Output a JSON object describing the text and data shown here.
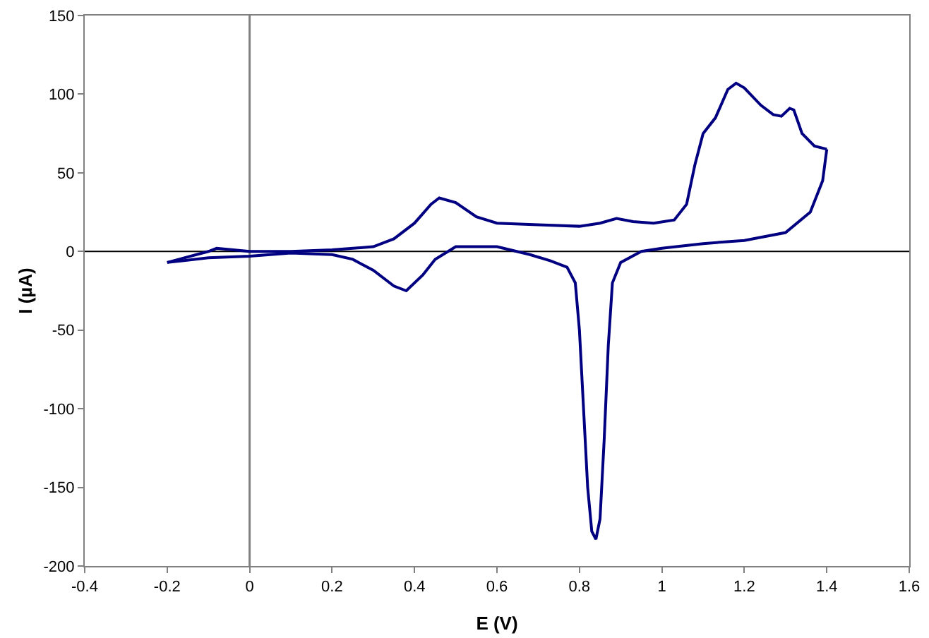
{
  "chart_data": {
    "type": "line",
    "xlabel": "E (V)",
    "ylabel": "I (µA)",
    "xlim": [
      -0.4,
      1.6
    ],
    "xticks": [
      -0.4,
      -0.2,
      0,
      0.2,
      0.4,
      0.6,
      0.8,
      1,
      1.2,
      1.4,
      1.6
    ],
    "ylim": [
      -200,
      150
    ],
    "yticks": [
      -200,
      -150,
      -100,
      -50,
      0,
      50,
      100,
      150
    ],
    "grid": false,
    "marker": "none",
    "line_style": "solid",
    "ref_lines": [
      {
        "axis": "x",
        "value": 0,
        "color": "#808080"
      },
      {
        "axis": "y",
        "value": 0,
        "color": "#000000"
      }
    ],
    "series": [
      {
        "color": "#000080",
        "x": [
          -0.2,
          -0.1,
          -0.08,
          -0.04,
          0,
          0.1,
          0.2,
          0.3,
          0.35,
          0.4,
          0.44,
          0.46,
          0.5,
          0.55,
          0.6,
          0.7,
          0.8,
          0.85,
          0.89,
          0.93,
          0.98,
          1.03,
          1.06,
          1.08,
          1.1,
          1.13,
          1.16,
          1.18,
          1.2,
          1.24,
          1.27,
          1.29,
          1.31,
          1.32,
          1.34,
          1.37,
          1.4
        ],
        "values": [
          -7,
          0,
          2,
          1,
          0,
          0,
          1,
          3,
          8,
          18,
          30,
          34,
          31,
          22,
          18,
          17,
          16,
          18,
          21,
          19,
          18,
          20,
          30,
          55,
          75,
          85,
          103,
          107,
          104,
          93,
          87,
          86,
          91,
          90,
          75,
          67,
          65
        ]
      },
      {
        "color": "#000080",
        "x": [
          -0.2,
          -0.1,
          0,
          0.1,
          0.2,
          0.25,
          0.3,
          0.35,
          0.38,
          0.42,
          0.45,
          0.5,
          0.6,
          0.68,
          0.73,
          0.77,
          0.79,
          0.8,
          0.81,
          0.82,
          0.83,
          0.84,
          0.85,
          0.86,
          0.87,
          0.88,
          0.9,
          0.95,
          1.0,
          1.1,
          1.2,
          1.3,
          1.36,
          1.39,
          1.4
        ],
        "values": [
          -7,
          -4,
          -3,
          -1,
          -2,
          -5,
          -12,
          -22,
          -25,
          -15,
          -5,
          3,
          3,
          -2,
          -6,
          -10,
          -20,
          -50,
          -100,
          -150,
          -178,
          -183,
          -170,
          -120,
          -60,
          -20,
          -7,
          0,
          2,
          5,
          7,
          12,
          25,
          45,
          65
        ]
      }
    ]
  }
}
